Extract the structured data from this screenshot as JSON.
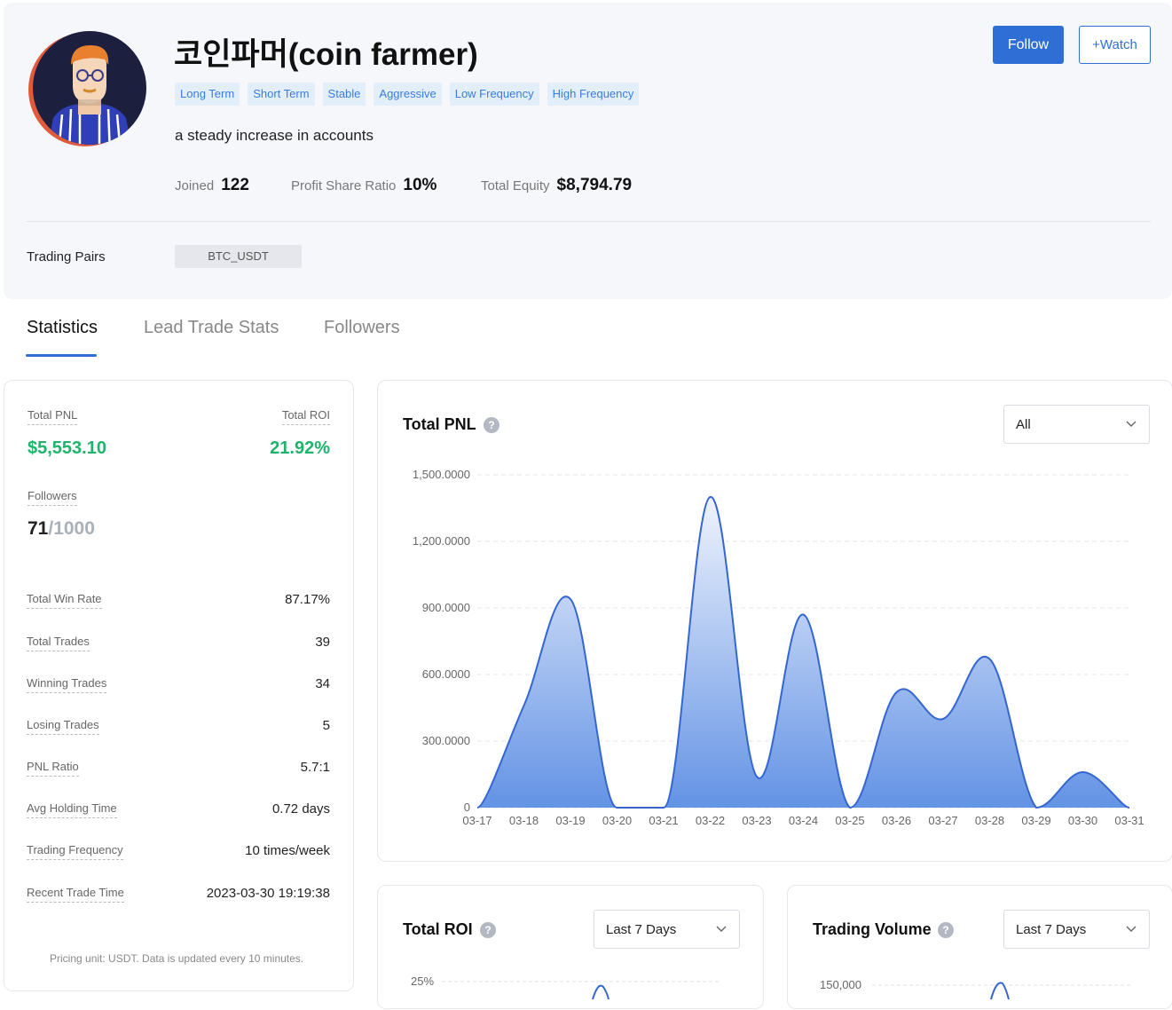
{
  "profile": {
    "name": "코인파머(coin farmer)",
    "tags": [
      "Long Term",
      "Short Term",
      "Stable",
      "Aggressive",
      "Low Frequency",
      "High Frequency"
    ],
    "description": "a steady increase in accounts",
    "stats": {
      "joined_label": "Joined",
      "joined_value": "122",
      "profit_share_label": "Profit Share Ratio",
      "profit_share_value": "10%",
      "equity_label": "Total Equity",
      "equity_value": "$8,794.79"
    },
    "trading_pairs_label": "Trading Pairs",
    "trading_pairs": [
      "BTC_USDT"
    ],
    "follow_label": "Follow",
    "watch_label": "+Watch"
  },
  "tabs": [
    {
      "label": "Statistics",
      "active": true
    },
    {
      "label": "Lead Trade Stats",
      "active": false
    },
    {
      "label": "Followers",
      "active": false
    }
  ],
  "statistics": {
    "total_pnl_label": "Total PNL",
    "total_pnl_value": "$5,553.10",
    "total_roi_label": "Total ROI",
    "total_roi_value": "21.92%",
    "followers_label": "Followers",
    "followers_current": "71",
    "followers_max": "/1000",
    "rows": [
      {
        "label": "Total Win Rate",
        "value": "87.17%"
      },
      {
        "label": "Total Trades",
        "value": "39"
      },
      {
        "label": "Winning Trades",
        "value": "34"
      },
      {
        "label": "Losing Trades",
        "value": "5"
      },
      {
        "label": "PNL Ratio",
        "value": "5.7:1"
      },
      {
        "label": "Avg Holding Time",
        "value": "0.72 days"
      },
      {
        "label": "Trading Frequency",
        "value": "10 times/week"
      },
      {
        "label": "Recent Trade Time",
        "value": "2023-03-30 19:19:38"
      }
    ],
    "footnote": "Pricing unit: USDT. Data is updated every 10 minutes."
  },
  "pnl_panel": {
    "title": "Total PNL",
    "help_icon": "question-circle-icon",
    "range_select": "All"
  },
  "roi_panel": {
    "title": "Total ROI",
    "help_icon": "question-circle-icon",
    "range_select": "Last 7 Days",
    "visible_tick": "25%"
  },
  "volume_panel": {
    "title": "Trading Volume",
    "help_icon": "question-circle-icon",
    "range_select": "Last 7 Days",
    "visible_tick": "150,000"
  },
  "colors": {
    "accent": "#2f6fd5",
    "positive": "#1fb36b",
    "tag_bg": "#e3eefb",
    "tag_text": "#3a7de0",
    "area_top": "#dde8f8",
    "area_bottom": "#5b8de3"
  },
  "chart_data": {
    "type": "area",
    "title": "Total PNL",
    "xlabel": "",
    "ylabel": "",
    "x": [
      "03-17",
      "03-18",
      "03-19",
      "03-20",
      "03-21",
      "03-22",
      "03-23",
      "03-24",
      "03-25",
      "03-26",
      "03-27",
      "03-28",
      "03-29",
      "03-30",
      "03-31"
    ],
    "values": [
      0,
      460,
      940,
      0,
      0,
      1400,
      140,
      870,
      0,
      520,
      400,
      670,
      0,
      160,
      0
    ],
    "ylim": [
      0,
      1500
    ],
    "yticks": [
      "0",
      "300.0000",
      "600.0000",
      "900.0000",
      "1,200.0000",
      "1,500.0000"
    ],
    "ytick_values": [
      0,
      300,
      600,
      900,
      1200,
      1500
    ],
    "grid": true,
    "legend": "none"
  }
}
